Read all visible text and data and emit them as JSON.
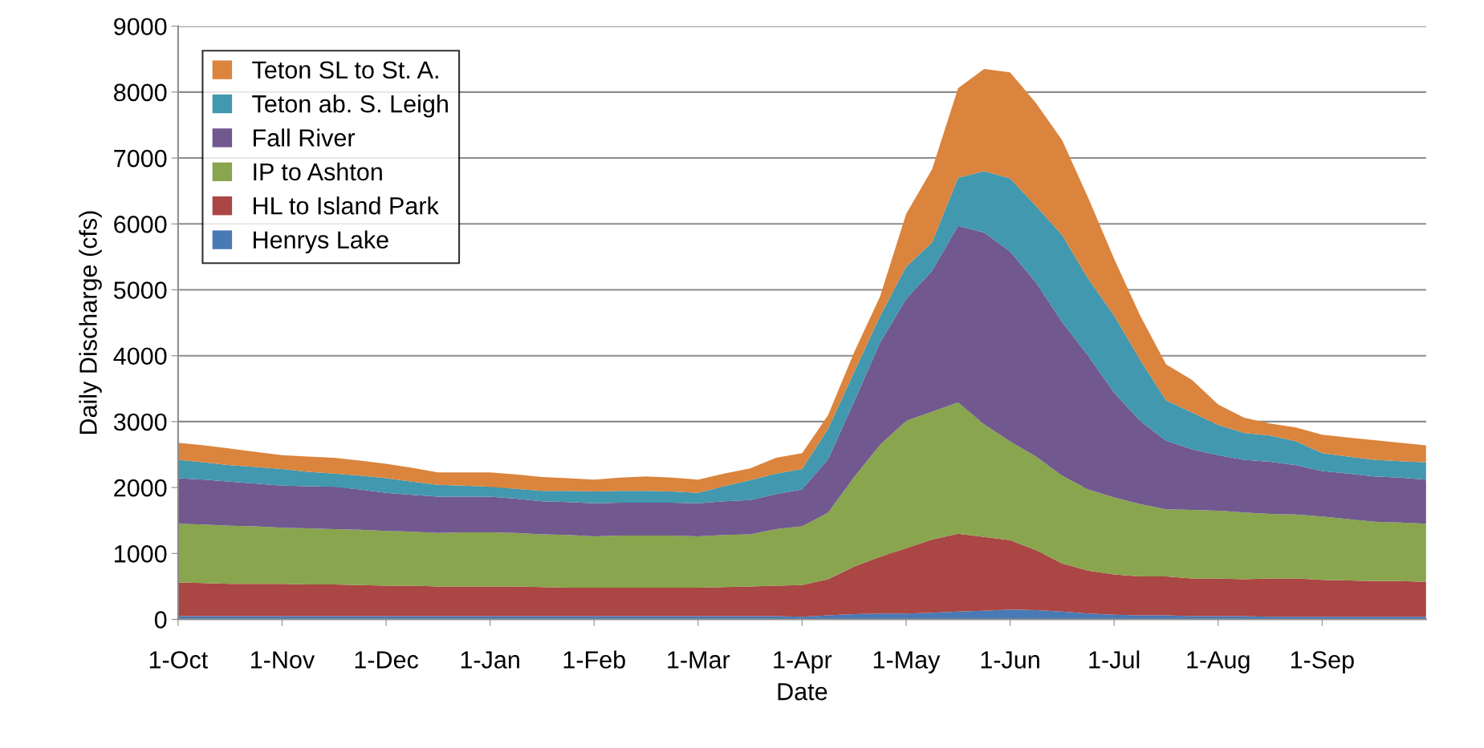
{
  "chart_data": {
    "type": "area",
    "stacked": true,
    "xlabel": "Date",
    "ylabel": "Daily Discharge (cfs)",
    "categories": [
      "1-Oct",
      null,
      null,
      null,
      "1-Nov",
      null,
      null,
      null,
      "1-Dec",
      null,
      null,
      null,
      "1-Jan",
      null,
      null,
      null,
      "1-Feb",
      null,
      null,
      null,
      "1-Mar",
      null,
      null,
      null,
      "1-Apr",
      null,
      null,
      null,
      "1-May",
      null,
      null,
      null,
      "1-Jun",
      null,
      null,
      null,
      "1-Jul",
      null,
      null,
      null,
      "1-Aug",
      null,
      null,
      null,
      "1-Sep",
      null,
      null,
      null,
      null
    ],
    "series": [
      {
        "name": "Henrys Lake",
        "color": "#4a7ab5",
        "values": [
          50,
          50,
          50,
          50,
          50,
          50,
          50,
          50,
          50,
          50,
          50,
          50,
          50,
          50,
          50,
          50,
          50,
          50,
          50,
          50,
          50,
          50,
          50,
          50,
          40,
          60,
          80,
          90,
          90,
          100,
          120,
          130,
          150,
          140,
          120,
          90,
          70,
          60,
          60,
          50,
          50,
          50,
          40,
          40,
          40,
          40,
          40,
          40,
          40
        ]
      },
      {
        "name": "HL to Island Park",
        "color": "#aa4643",
        "values": [
          510,
          500,
          490,
          490,
          490,
          480,
          480,
          470,
          460,
          460,
          450,
          450,
          450,
          450,
          440,
          430,
          430,
          430,
          430,
          430,
          430,
          440,
          450,
          460,
          480,
          550,
          720,
          860,
          990,
          1110,
          1180,
          1120,
          1050,
          910,
          730,
          650,
          610,
          590,
          590,
          570,
          570,
          560,
          580,
          580,
          560,
          550,
          540,
          540,
          530
        ]
      },
      {
        "name": "IP to Ashton",
        "color": "#89a54e",
        "values": [
          890,
          890,
          880,
          870,
          850,
          850,
          840,
          840,
          830,
          820,
          810,
          820,
          820,
          810,
          800,
          800,
          780,
          790,
          790,
          790,
          780,
          790,
          790,
          860,
          890,
          1010,
          1360,
          1700,
          1930,
          1940,
          1990,
          1710,
          1500,
          1420,
          1330,
          1230,
          1170,
          1100,
          1020,
          1040,
          1030,
          1010,
          980,
          970,
          960,
          930,
          900,
          890,
          880
        ]
      },
      {
        "name": "Fall River",
        "color": "#71588f",
        "values": [
          690,
          680,
          670,
          650,
          640,
          640,
          640,
          610,
          580,
          560,
          550,
          540,
          540,
          520,
          500,
          500,
          500,
          500,
          500,
          500,
          500,
          510,
          520,
          530,
          560,
          810,
          1140,
          1550,
          1850,
          2140,
          2680,
          2910,
          2880,
          2640,
          2330,
          2030,
          1590,
          1260,
          1040,
          920,
          840,
          800,
          790,
          750,
          690,
          690,
          690,
          680,
          670
        ]
      },
      {
        "name": "Teton ab. S. Leigh",
        "color": "#4198af",
        "values": [
          280,
          260,
          250,
          250,
          250,
          220,
          200,
          210,
          220,
          200,
          180,
          170,
          150,
          150,
          160,
          170,
          180,
          180,
          180,
          170,
          160,
          230,
          300,
          310,
          310,
          460,
          450,
          400,
          490,
          430,
          730,
          930,
          1110,
          1160,
          1320,
          1170,
          1170,
          930,
          610,
          560,
          460,
          410,
          400,
          360,
          270,
          260,
          250,
          250,
          260
        ]
      },
      {
        "name": "Teton SL to St. A.",
        "color": "#db843d",
        "values": [
          260,
          260,
          250,
          230,
          210,
          230,
          240,
          230,
          220,
          210,
          190,
          200,
          220,
          220,
          210,
          190,
          180,
          200,
          220,
          210,
          200,
          190,
          180,
          240,
          240,
          210,
          300,
          300,
          800,
          1110,
          1360,
          1550,
          1610,
          1560,
          1440,
          1230,
          860,
          670,
          550,
          490,
          310,
          230,
          180,
          210,
          280,
          290,
          300,
          280,
          260
        ]
      }
    ],
    "ylim": [
      0,
      9000
    ],
    "yticks": [
      0,
      1000,
      2000,
      3000,
      4000,
      5000,
      6000,
      7000,
      8000,
      9000
    ],
    "grid": "y",
    "legend": "top left"
  }
}
